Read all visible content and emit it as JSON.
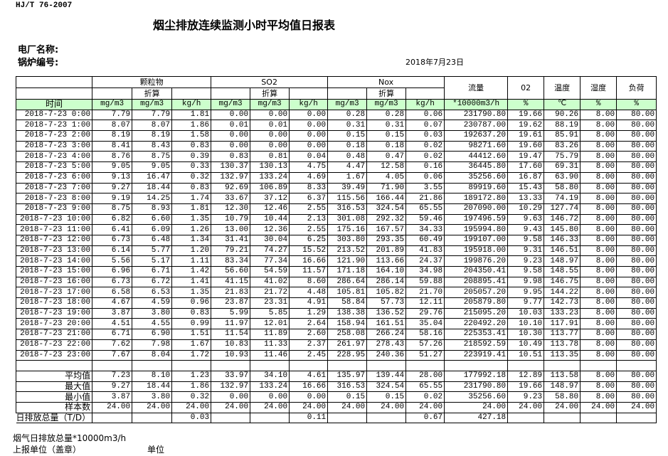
{
  "header": {
    "standard": "HJ/T  76-2007",
    "title": "烟尘排放连续监测小时平均值日报表",
    "plant_label": "电厂名称:",
    "boiler_label": "锅炉编号:",
    "date": "2018年7月23日"
  },
  "table": {
    "groups": {
      "particulate": "颗粒物",
      "so2": "SO2",
      "nox": "Nox",
      "flow": "流量",
      "o2": "02",
      "temp": "温度",
      "humidity": "湿度",
      "load": "负荷"
    },
    "converted": "折算",
    "units": [
      "时间",
      "mg/m3",
      "mg/m3",
      "kg/h",
      "mg/m3",
      "mg/m3",
      "kg/h",
      "mg/m3",
      "mg/m3",
      "kg/h",
      "*10000m3/h",
      "%",
      "℃",
      "%",
      "%"
    ],
    "rows": [
      [
        "2018-7-23 0:00",
        "7.79",
        "7.79",
        "1.81",
        "0.00",
        "0.00",
        "0.00",
        "0.28",
        "0.28",
        "0.06",
        "231790.80",
        "19.66",
        "90.26",
        "8.00",
        "80.00"
      ],
      [
        "2018-7-23 1:00",
        "8.07",
        "8.07",
        "1.86",
        "0.01",
        "0.01",
        "0.00",
        "0.31",
        "0.31",
        "0.07",
        "230787.00",
        "19.62",
        "88.19",
        "8.00",
        "80.00"
      ],
      [
        "2018-7-23 2:00",
        "8.19",
        "8.19",
        "1.58",
        "0.00",
        "0.00",
        "0.00",
        "0.15",
        "0.15",
        "0.03",
        "192637.20",
        "19.61",
        "85.91",
        "8.00",
        "80.00"
      ],
      [
        "2018-7-23 3:00",
        "8.41",
        "8.43",
        "0.83",
        "0.00",
        "0.00",
        "0.00",
        "0.18",
        "0.18",
        "0.02",
        "98271.60",
        "19.60",
        "83.26",
        "8.00",
        "80.00"
      ],
      [
        "2018-7-23 4:00",
        "8.76",
        "8.75",
        "0.39",
        "0.83",
        "0.81",
        "0.04",
        "0.48",
        "0.47",
        "0.02",
        "44412.60",
        "19.47",
        "75.79",
        "8.00",
        "80.00"
      ],
      [
        "2018-7-23 5:00",
        "9.05",
        "9.05",
        "0.33",
        "130.37",
        "130.13",
        "4.75",
        "4.47",
        "12.58",
        "0.16",
        "36445.80",
        "17.60",
        "69.31",
        "8.00",
        "80.00"
      ],
      [
        "2018-7-23 6:00",
        "9.13",
        "16.47",
        "0.32",
        "132.97",
        "133.24",
        "4.69",
        "1.67",
        "4.05",
        "0.06",
        "35256.60",
        "16.87",
        "63.90",
        "8.00",
        "80.00"
      ],
      [
        "2018-7-23 7:00",
        "9.27",
        "18.44",
        "0.83",
        "92.69",
        "106.89",
        "8.33",
        "39.49",
        "71.90",
        "3.55",
        "89919.60",
        "15.43",
        "58.80",
        "8.00",
        "80.00"
      ],
      [
        "2018-7-23 8:00",
        "9.19",
        "14.25",
        "1.74",
        "33.67",
        "37.12",
        "6.37",
        "115.56",
        "166.44",
        "21.86",
        "189172.80",
        "13.33",
        "74.19",
        "8.00",
        "80.00"
      ],
      [
        "2018-7-23 9:00",
        "8.75",
        "8.93",
        "1.81",
        "12.30",
        "12.46",
        "2.55",
        "316.53",
        "324.54",
        "65.55",
        "207090.00",
        "10.29",
        "127.74",
        "8.00",
        "80.00"
      ],
      [
        "2018-7-23 10:00",
        "6.82",
        "6.60",
        "1.35",
        "10.79",
        "10.44",
        "2.13",
        "301.08",
        "292.32",
        "59.46",
        "197496.59",
        "9.63",
        "146.72",
        "8.00",
        "80.00"
      ],
      [
        "2018-7-23 11:00",
        "6.41",
        "6.09",
        "1.26",
        "13.00",
        "12.36",
        "2.55",
        "175.16",
        "167.57",
        "34.33",
        "195994.80",
        "9.43",
        "145.80",
        "8.00",
        "80.00"
      ],
      [
        "2018-7-23 12:00",
        "6.73",
        "6.48",
        "1.34",
        "31.41",
        "30.04",
        "6.25",
        "303.80",
        "293.35",
        "60.49",
        "199107.00",
        "9.58",
        "146.33",
        "8.00",
        "80.00"
      ],
      [
        "2018-7-23 13:00",
        "6.14",
        "5.77",
        "1.20",
        "79.21",
        "74.27",
        "15.52",
        "213.52",
        "201.89",
        "41.83",
        "195918.00",
        "9.31",
        "146.51",
        "8.00",
        "80.00"
      ],
      [
        "2018-7-23 14:00",
        "5.56",
        "5.17",
        "1.11",
        "83.34",
        "77.34",
        "16.66",
        "121.90",
        "113.66",
        "24.37",
        "199876.20",
        "9.23",
        "148.97",
        "8.00",
        "80.00"
      ],
      [
        "2018-7-23 15:00",
        "6.96",
        "6.71",
        "1.42",
        "56.60",
        "54.59",
        "11.57",
        "171.18",
        "164.10",
        "34.98",
        "204350.41",
        "9.58",
        "148.55",
        "8.00",
        "80.00"
      ],
      [
        "2018-7-23 16:00",
        "6.73",
        "6.72",
        "1.41",
        "41.15",
        "41.02",
        "8.60",
        "286.64",
        "286.14",
        "59.88",
        "208895.41",
        "9.98",
        "146.75",
        "8.00",
        "80.00"
      ],
      [
        "2018-7-23 17:00",
        "6.58",
        "6.53",
        "1.35",
        "21.83",
        "21.72",
        "4.48",
        "105.81",
        "105.82",
        "21.70",
        "205057.20",
        "9.95",
        "144.22",
        "8.00",
        "80.00"
      ],
      [
        "2018-7-23 18:00",
        "4.67",
        "4.59",
        "0.96",
        "23.87",
        "23.31",
        "4.91",
        "58.84",
        "57.73",
        "12.11",
        "205879.80",
        "9.77",
        "142.73",
        "8.00",
        "80.00"
      ],
      [
        "2018-7-23 19:00",
        "3.87",
        "3.80",
        "0.83",
        "5.99",
        "5.85",
        "1.29",
        "138.38",
        "136.52",
        "29.76",
        "215095.20",
        "10.03",
        "133.23",
        "8.00",
        "80.00"
      ],
      [
        "2018-7-23 20:00",
        "4.51",
        "4.55",
        "0.99",
        "11.97",
        "12.01",
        "2.64",
        "158.94",
        "161.51",
        "35.04",
        "220492.20",
        "10.10",
        "117.91",
        "8.00",
        "80.00"
      ],
      [
        "2018-7-23 21:00",
        "6.71",
        "6.90",
        "1.51",
        "11.54",
        "11.89",
        "2.60",
        "258.08",
        "266.24",
        "58.16",
        "225353.41",
        "10.30",
        "113.77",
        "8.00",
        "80.00"
      ],
      [
        "2018-7-23 22:00",
        "7.62",
        "7.98",
        "1.67",
        "10.83",
        "11.33",
        "2.37",
        "261.97",
        "278.43",
        "57.26",
        "218592.59",
        "10.49",
        "113.78",
        "8.00",
        "80.00"
      ],
      [
        "2018-7-23 23:00",
        "7.67",
        "8.04",
        "1.72",
        "10.93",
        "11.46",
        "2.45",
        "228.95",
        "240.36",
        "51.27",
        "223919.41",
        "10.51",
        "113.35",
        "8.00",
        "80.00"
      ]
    ],
    "summary": [
      [
        "平均值",
        "7.23",
        "8.10",
        "1.23",
        "33.97",
        "34.10",
        "4.61",
        "135.97",
        "139.44",
        "28.00",
        "177992.18",
        "12.89",
        "113.58",
        "8.00",
        "80.00"
      ],
      [
        "最大值",
        "9.27",
        "18.44",
        "1.86",
        "132.97",
        "133.24",
        "16.66",
        "316.53",
        "324.54",
        "65.55",
        "231790.80",
        "19.66",
        "148.97",
        "8.00",
        "80.00"
      ],
      [
        "最小值",
        "3.87",
        "3.80",
        "0.32",
        "0.00",
        "0.00",
        "0.00",
        "0.15",
        "0.15",
        "0.02",
        "35256.60",
        "9.23",
        "58.80",
        "8.00",
        "80.00"
      ],
      [
        "样本数",
        "24.00",
        "24.00",
        "24.00",
        "24.00",
        "24.00",
        "24.00",
        "24.00",
        "24.00",
        "24.00",
        "24.00",
        "24.00",
        "24.00",
        "24.00",
        "24.00"
      ]
    ],
    "daily_total": [
      "日排放总量（T/D）",
      "",
      "",
      "0.03",
      "",
      "",
      "0.11",
      "",
      "",
      "0.67",
      "427.18",
      "",
      "",
      "",
      ""
    ]
  },
  "footer": {
    "flue_gas_total": "烟气日排放总量*10000m3/h",
    "reporting_unit": "上报单位（盖章）",
    "unit": "单位"
  }
}
